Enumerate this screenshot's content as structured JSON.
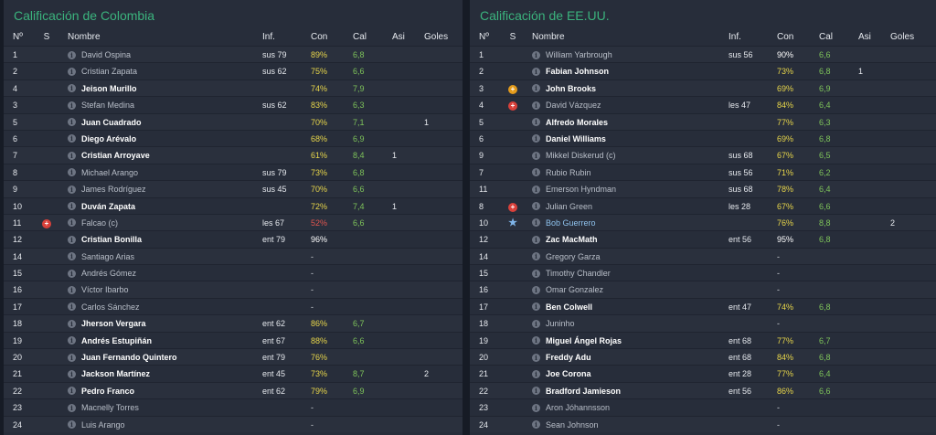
{
  "columns": {
    "num": "Nº",
    "s": "S",
    "name": "Nombre",
    "info": "Inf.",
    "con": "Con",
    "cal": "Cal",
    "asi": "Asi",
    "goles": "Goles"
  },
  "colors": {
    "title": "#3bb37d",
    "condition_yellow": "#e8d64a",
    "rating_green": "#7ec35a",
    "condition_red": "#e0554f",
    "link_blue": "#8fc3ee"
  },
  "left": {
    "title": "Calificación de Colombia",
    "rows": [
      {
        "num": "1",
        "status": "",
        "name": "David Ospina",
        "style": "sub",
        "info": "sus 79",
        "con": "89%",
        "con_style": "normal",
        "cal": "6,8",
        "asi": "",
        "goles": ""
      },
      {
        "num": "2",
        "status": "",
        "name": "Cristian Zapata",
        "style": "sub",
        "info": "sus 62",
        "con": "75%",
        "con_style": "normal",
        "cal": "6,6",
        "asi": "",
        "goles": ""
      },
      {
        "num": "4",
        "status": "",
        "name": "Jeison Murillo",
        "style": "bold",
        "info": "",
        "con": "74%",
        "con_style": "normal",
        "cal": "7,9",
        "asi": "",
        "goles": ""
      },
      {
        "num": "3",
        "status": "",
        "name": "Stefan Medina",
        "style": "sub",
        "info": "sus 62",
        "con": "83%",
        "con_style": "normal",
        "cal": "6,3",
        "asi": "",
        "goles": ""
      },
      {
        "num": "5",
        "status": "",
        "name": "Juan Cuadrado",
        "style": "bold",
        "info": "",
        "con": "70%",
        "con_style": "normal",
        "cal": "7,1",
        "asi": "",
        "goles": "1"
      },
      {
        "num": "6",
        "status": "",
        "name": "Diego Arévalo",
        "style": "bold",
        "info": "",
        "con": "68%",
        "con_style": "normal",
        "cal": "6,9",
        "asi": "",
        "goles": ""
      },
      {
        "num": "7",
        "status": "",
        "name": "Cristian Arroyave",
        "style": "bold",
        "info": "",
        "con": "61%",
        "con_style": "normal",
        "cal": "8,4",
        "asi": "1",
        "goles": ""
      },
      {
        "num": "8",
        "status": "",
        "name": "Michael Arango",
        "style": "sub",
        "info": "sus 79",
        "con": "73%",
        "con_style": "normal",
        "cal": "6,8",
        "asi": "",
        "goles": ""
      },
      {
        "num": "9",
        "status": "",
        "name": "James Rodríguez",
        "style": "sub",
        "info": "sus 45",
        "con": "70%",
        "con_style": "normal",
        "cal": "6,6",
        "asi": "",
        "goles": ""
      },
      {
        "num": "10",
        "status": "",
        "name": "Duván Zapata",
        "style": "bold",
        "info": "",
        "con": "72%",
        "con_style": "normal",
        "cal": "7,4",
        "asi": "1",
        "goles": ""
      },
      {
        "num": "11",
        "status": "injury",
        "name": "Falcao (c)",
        "style": "sub",
        "info": "les 67",
        "con": "52%",
        "con_style": "low",
        "cal": "6,6",
        "asi": "",
        "goles": ""
      },
      {
        "num": "12",
        "status": "",
        "name": "Cristian Bonilla",
        "style": "bold",
        "info": "ent 79",
        "con": "96%",
        "con_style": "full",
        "cal": "",
        "asi": "",
        "goles": ""
      },
      {
        "num": "14",
        "status": "",
        "name": "Santiago Arias",
        "style": "sub",
        "info": "",
        "con": "-",
        "con_style": "dash",
        "cal": "",
        "asi": "",
        "goles": ""
      },
      {
        "num": "15",
        "status": "",
        "name": "Andrés Gómez",
        "style": "sub",
        "info": "",
        "con": "-",
        "con_style": "dash",
        "cal": "",
        "asi": "",
        "goles": ""
      },
      {
        "num": "16",
        "status": "",
        "name": "Víctor Ibarbo",
        "style": "sub",
        "info": "",
        "con": "-",
        "con_style": "dash",
        "cal": "",
        "asi": "",
        "goles": ""
      },
      {
        "num": "17",
        "status": "",
        "name": "Carlos Sánchez",
        "style": "sub",
        "info": "",
        "con": "-",
        "con_style": "dash",
        "cal": "",
        "asi": "",
        "goles": ""
      },
      {
        "num": "18",
        "status": "",
        "name": "Jherson Vergara",
        "style": "bold",
        "info": "ent 62",
        "con": "86%",
        "con_style": "normal",
        "cal": "6,7",
        "asi": "",
        "goles": ""
      },
      {
        "num": "19",
        "status": "",
        "name": "Andrés Estupiñán",
        "style": "bold",
        "info": "ent 67",
        "con": "88%",
        "con_style": "normal",
        "cal": "6,6",
        "asi": "",
        "goles": ""
      },
      {
        "num": "20",
        "status": "",
        "name": "Juan Fernando Quintero",
        "style": "bold",
        "info": "ent 79",
        "con": "76%",
        "con_style": "normal",
        "cal": "",
        "asi": "",
        "goles": ""
      },
      {
        "num": "21",
        "status": "",
        "name": "Jackson Martínez",
        "style": "bold",
        "info": "ent 45",
        "con": "73%",
        "con_style": "normal",
        "cal": "8,7",
        "asi": "",
        "goles": "2"
      },
      {
        "num": "22",
        "status": "",
        "name": "Pedro Franco",
        "style": "bold",
        "info": "ent 62",
        "con": "79%",
        "con_style": "normal",
        "cal": "6,9",
        "asi": "",
        "goles": ""
      },
      {
        "num": "23",
        "status": "",
        "name": "Macnelly Torres",
        "style": "sub",
        "info": "",
        "con": "-",
        "con_style": "dash",
        "cal": "",
        "asi": "",
        "goles": ""
      },
      {
        "num": "24",
        "status": "",
        "name": "Luis Arango",
        "style": "sub",
        "info": "",
        "con": "-",
        "con_style": "dash",
        "cal": "",
        "asi": "",
        "goles": ""
      }
    ]
  },
  "right": {
    "title": "Calificación de EE.UU.",
    "rows": [
      {
        "num": "1",
        "status": "",
        "name": "William Yarbrough",
        "style": "sub",
        "info": "sus 56",
        "con": "90%",
        "con_style": "full",
        "cal": "6,6",
        "asi": "",
        "goles": ""
      },
      {
        "num": "2",
        "status": "",
        "name": "Fabian Johnson",
        "style": "bold",
        "info": "",
        "con": "73%",
        "con_style": "normal",
        "cal": "6,8",
        "asi": "1",
        "goles": ""
      },
      {
        "num": "3",
        "status": "warning",
        "name": "John Brooks",
        "style": "bold",
        "info": "",
        "con": "69%",
        "con_style": "normal",
        "cal": "6,9",
        "asi": "",
        "goles": ""
      },
      {
        "num": "4",
        "status": "injury",
        "name": "David Vázquez",
        "style": "sub",
        "info": "les 47",
        "con": "84%",
        "con_style": "normal",
        "cal": "6,4",
        "asi": "",
        "goles": ""
      },
      {
        "num": "5",
        "status": "",
        "name": "Alfredo Morales",
        "style": "bold",
        "info": "",
        "con": "77%",
        "con_style": "normal",
        "cal": "6,3",
        "asi": "",
        "goles": ""
      },
      {
        "num": "6",
        "status": "",
        "name": "Daniel Williams",
        "style": "bold",
        "info": "",
        "con": "69%",
        "con_style": "normal",
        "cal": "6,8",
        "asi": "",
        "goles": ""
      },
      {
        "num": "9",
        "status": "",
        "name": "Mikkel Diskerud (c)",
        "style": "sub",
        "info": "sus 68",
        "con": "67%",
        "con_style": "normal",
        "cal": "6,5",
        "asi": "",
        "goles": ""
      },
      {
        "num": "7",
        "status": "",
        "name": "Rubio Rubin",
        "style": "sub",
        "info": "sus 56",
        "con": "71%",
        "con_style": "normal",
        "cal": "6,2",
        "asi": "",
        "goles": ""
      },
      {
        "num": "11",
        "status": "",
        "name": "Emerson Hyndman",
        "style": "sub",
        "info": "sus 68",
        "con": "78%",
        "con_style": "normal",
        "cal": "6,4",
        "asi": "",
        "goles": ""
      },
      {
        "num": "8",
        "status": "injury",
        "name": "Julian Green",
        "style": "sub",
        "info": "les 28",
        "con": "67%",
        "con_style": "normal",
        "cal": "6,6",
        "asi": "",
        "goles": ""
      },
      {
        "num": "10",
        "status": "star",
        "name": "Bob Guerrero",
        "style": "link",
        "info": "",
        "con": "76%",
        "con_style": "normal",
        "cal": "8,8",
        "asi": "",
        "goles": "2"
      },
      {
        "num": "12",
        "status": "",
        "name": "Zac MacMath",
        "style": "bold",
        "info": "ent 56",
        "con": "95%",
        "con_style": "full",
        "cal": "6,8",
        "asi": "",
        "goles": ""
      },
      {
        "num": "14",
        "status": "",
        "name": "Gregory Garza",
        "style": "sub",
        "info": "",
        "con": "-",
        "con_style": "dash",
        "cal": "",
        "asi": "",
        "goles": ""
      },
      {
        "num": "15",
        "status": "",
        "name": "Timothy Chandler",
        "style": "sub",
        "info": "",
        "con": "-",
        "con_style": "dash",
        "cal": "",
        "asi": "",
        "goles": ""
      },
      {
        "num": "16",
        "status": "",
        "name": "Omar Gonzalez",
        "style": "sub",
        "info": "",
        "con": "-",
        "con_style": "dash",
        "cal": "",
        "asi": "",
        "goles": ""
      },
      {
        "num": "17",
        "status": "",
        "name": "Ben Colwell",
        "style": "bold",
        "info": "ent 47",
        "con": "74%",
        "con_style": "normal",
        "cal": "6,8",
        "asi": "",
        "goles": ""
      },
      {
        "num": "18",
        "status": "",
        "name": "Juninho",
        "style": "sub",
        "info": "",
        "con": "-",
        "con_style": "dash",
        "cal": "",
        "asi": "",
        "goles": ""
      },
      {
        "num": "19",
        "status": "",
        "name": "Miguel Ángel Rojas",
        "style": "bold",
        "info": "ent 68",
        "con": "77%",
        "con_style": "normal",
        "cal": "6,7",
        "asi": "",
        "goles": ""
      },
      {
        "num": "20",
        "status": "",
        "name": "Freddy Adu",
        "style": "bold",
        "info": "ent 68",
        "con": "84%",
        "con_style": "normal",
        "cal": "6,8",
        "asi": "",
        "goles": ""
      },
      {
        "num": "21",
        "status": "",
        "name": "Joe Corona",
        "style": "bold",
        "info": "ent 28",
        "con": "77%",
        "con_style": "normal",
        "cal": "6,4",
        "asi": "",
        "goles": ""
      },
      {
        "num": "22",
        "status": "",
        "name": "Bradford Jamieson",
        "style": "bold",
        "info": "ent 56",
        "con": "86%",
        "con_style": "normal",
        "cal": "6,6",
        "asi": "",
        "goles": ""
      },
      {
        "num": "23",
        "status": "",
        "name": "Aron Jóhannsson",
        "style": "sub",
        "info": "",
        "con": "-",
        "con_style": "dash",
        "cal": "",
        "asi": "",
        "goles": ""
      },
      {
        "num": "24",
        "status": "",
        "name": "Sean Johnson",
        "style": "sub",
        "info": "",
        "con": "-",
        "con_style": "dash",
        "cal": "",
        "asi": "",
        "goles": ""
      }
    ]
  }
}
